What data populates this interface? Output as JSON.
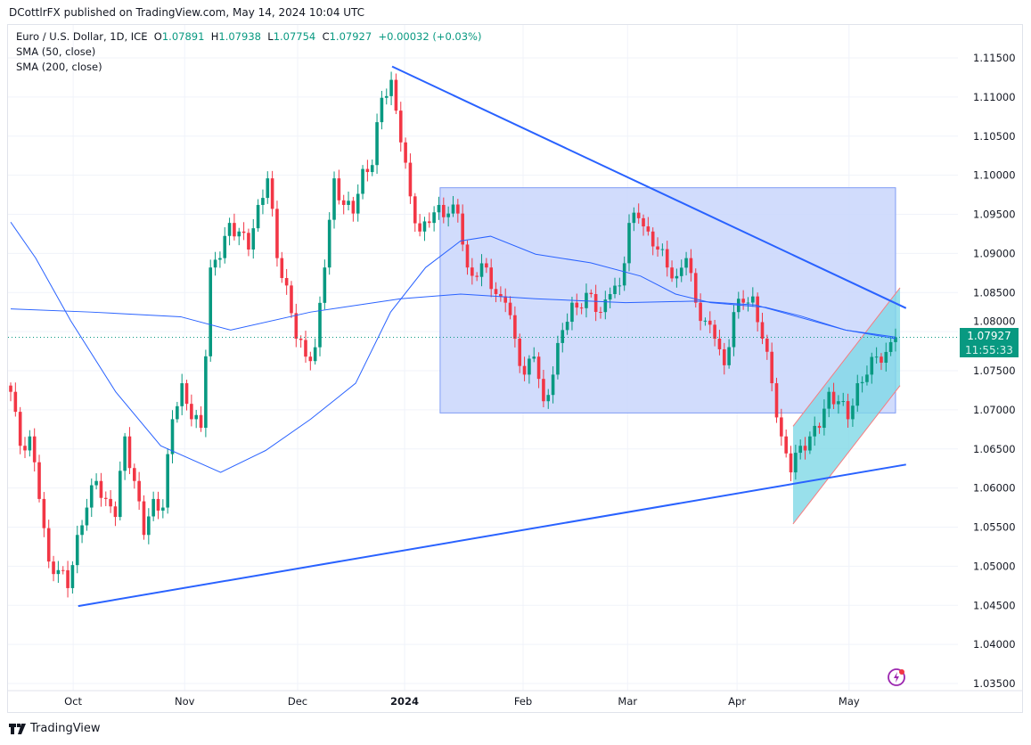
{
  "header": {
    "published": "DCottlrFX published on TradingView.com, May 14, 2024 10:04 UTC"
  },
  "legend": {
    "symbol": "Euro / U.S. Dollar, 1D, ICE",
    "o_label": "O",
    "o": "1.07891",
    "h_label": "H",
    "h": "1.07938",
    "l_label": "L",
    "l": "1.07754",
    "c_label": "C",
    "c": "1.07927",
    "change": "+0.00032 (+0.03%)",
    "sma50": "SMA (50, close)",
    "sma200": "SMA (200, close)"
  },
  "price_label": {
    "price": "1.07927",
    "countdown": "11:55:33"
  },
  "footer": {
    "brand": "TradingView"
  },
  "colors": {
    "up": "#089981",
    "down": "#f23645",
    "sma": "#2962ff",
    "trend": "#2962ff",
    "rect": "#c9d6fb",
    "channel": "#7fd8e6"
  },
  "chart_data": {
    "type": "candlestick",
    "title": "Euro / U.S. Dollar, 1D, ICE",
    "y_ticks": [
      "1.11500",
      "1.11000",
      "1.10500",
      "1.10000",
      "1.09500",
      "1.09000",
      "1.08500",
      "1.08000",
      "1.07500",
      "1.07000",
      "1.06500",
      "1.06000",
      "1.05500",
      "1.05000",
      "1.04500",
      "1.04000",
      "1.03500"
    ],
    "ylim": [
      1.035,
      1.115
    ],
    "x_ticks": [
      {
        "label": "Oct",
        "t": 12.5
      },
      {
        "label": "Nov",
        "t": 34.8
      },
      {
        "label": "Dec",
        "t": 57.4
      },
      {
        "label": "2024",
        "t": 78.8,
        "bold": true
      },
      {
        "label": "Feb",
        "t": 102.5
      },
      {
        "label": "Mar",
        "t": 123.4
      },
      {
        "label": "Apr",
        "t": 145.3
      },
      {
        "label": "May",
        "t": 167.7
      }
    ],
    "t_range": [
      0,
      177
    ],
    "closes": [
      1.0723,
      1.0654,
      1.0666,
      1.0586,
      1.0506,
      1.0495,
      1.0472,
      1.054,
      1.0575,
      1.0609,
      1.0586,
      1.0563,
      1.0666,
      1.0609,
      1.054,
      1.0586,
      1.0575,
      1.0688,
      1.0734,
      1.0688,
      1.0677,
      1.0882,
      1.0894,
      1.0939,
      1.0928,
      1.0905,
      1.0962,
      1.0996,
      1.0894,
      1.0859,
      1.0791,
      1.0768,
      1.078,
      1.0882,
      1.0996,
      1.0962,
      1.0951,
      1.1008,
      1.1013,
      1.1099,
      1.1122,
      1.1042,
      1.0973,
      1.0928,
      1.0939,
      1.0962,
      1.0951,
      1.0951,
      1.0882,
      1.087,
      1.0882,
      1.0848,
      1.0837,
      1.0791,
      1.0745,
      1.0768,
      1.0711,
      1.0745,
      1.0802,
      1.0837,
      1.083,
      1.0848,
      1.0825,
      1.0848,
      1.0859,
      1.0939,
      1.0945,
      1.0928,
      1.0905,
      1.0882,
      1.0871,
      1.0894,
      1.0837,
      1.0814,
      1.0791,
      1.0757,
      1.0825,
      1.0837,
      1.0845,
      1.0791,
      1.0734,
      1.0666,
      1.062,
      1.0654,
      1.0666,
      1.0677,
      1.0723,
      1.0711,
      1.0688,
      1.0734,
      1.0745,
      1.0768,
      1.0774,
      1.07927
    ],
    "sma50": [
      [
        0,
        1.094
      ],
      [
        5,
        1.0894
      ],
      [
        12,
        1.0814
      ],
      [
        21,
        1.0723
      ],
      [
        30,
        1.0654
      ],
      [
        42,
        1.062
      ],
      [
        51,
        1.0648
      ],
      [
        60,
        1.0688
      ],
      [
        69,
        1.0734
      ],
      [
        76,
        1.0825
      ],
      [
        83,
        1.0882
      ],
      [
        90,
        1.0916
      ],
      [
        96,
        1.0922
      ],
      [
        105,
        1.0899
      ],
      [
        116,
        1.0888
      ],
      [
        126,
        1.0871
      ],
      [
        133,
        1.0848
      ],
      [
        140,
        1.0837
      ],
      [
        151,
        1.0831
      ],
      [
        158,
        1.082
      ],
      [
        167,
        1.0802
      ],
      [
        177,
        1.0791
      ]
    ],
    "sma200": [
      [
        0,
        1.0829
      ],
      [
        16,
        1.0825
      ],
      [
        34,
        1.0819
      ],
      [
        44,
        1.0802
      ],
      [
        60,
        1.0825
      ],
      [
        78,
        1.0842
      ],
      [
        90,
        1.0848
      ],
      [
        105,
        1.0842
      ],
      [
        123,
        1.0837
      ],
      [
        137,
        1.0839
      ],
      [
        149,
        1.0834
      ],
      [
        167,
        1.0802
      ],
      [
        177,
        1.0793
      ]
    ],
    "drawings": {
      "upper_trendline": [
        [
          76.3,
          1.1139
        ],
        [
          179.1,
          1.083
        ]
      ],
      "lower_trendline": [
        [
          13.5,
          1.0449
        ],
        [
          179.1,
          1.063
        ]
      ],
      "range_box": {
        "t": [
          85.9,
          177.0
        ],
        "price": [
          1.0696,
          1.0984
        ]
      },
      "channel": {
        "t": [
          156.5,
          177.9
        ],
        "lower": [
          1.0554,
          1.0731
        ],
        "upper": [
          1.0679,
          1.0856
        ]
      }
    },
    "last_price": 1.07927
  }
}
